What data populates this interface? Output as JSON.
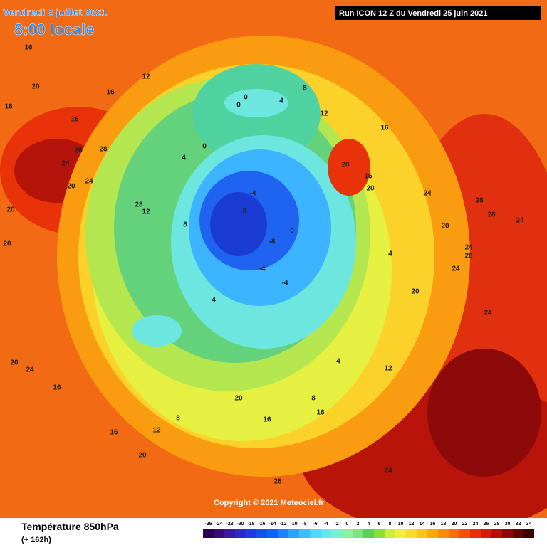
{
  "header": {
    "date": "Vendredi 2 juillet 2021",
    "time": "8:00 locale",
    "run": "Run ICON 12 Z du Vendredi 25 juin 2021"
  },
  "copyright": "Copyright © 2021 Meteociel.fr",
  "footer": {
    "title": "Température 850hPa",
    "lead": "(+ 162h)"
  },
  "colorbar": {
    "ticks": [
      -26,
      -24,
      -22,
      -20,
      -18,
      -16,
      -14,
      -12,
      -10,
      -8,
      -6,
      -4,
      -2,
      0,
      2,
      4,
      6,
      8,
      10,
      12,
      14,
      16,
      18,
      20,
      22,
      24,
      26,
      28,
      30,
      32,
      34
    ],
    "colors": [
      "#2a0050",
      "#3a0a7a",
      "#3c1aa0",
      "#2a2ac8",
      "#1e3ce0",
      "#1450f0",
      "#0a64ff",
      "#1e82ff",
      "#2ea0ff",
      "#3cbeff",
      "#50d6ff",
      "#64e8f0",
      "#78f0d0",
      "#8cf0a0",
      "#7ce67c",
      "#5ad25a",
      "#8cdc3c",
      "#c8f03c",
      "#f0f03c",
      "#fadc28",
      "#fac814",
      "#faaa0a",
      "#fa8c0a",
      "#f56e0a",
      "#f0500a",
      "#e6320a",
      "#d21e0a",
      "#b40f0a",
      "#8c0a0a",
      "#640505",
      "#3c0000"
    ]
  },
  "map_labels": [
    "16",
    "16",
    "12",
    "16",
    "20",
    "16",
    "20",
    "28",
    "24",
    "28",
    "24",
    "20",
    "28",
    "20",
    "12",
    "8",
    "4",
    "0",
    "0",
    "4",
    "-4",
    "-8",
    "-8",
    "-4",
    "-4",
    "0",
    "4",
    "8",
    "0",
    "4",
    "12",
    "16",
    "20",
    "16",
    "20",
    "24",
    "28",
    "24",
    "20",
    "28",
    "24",
    "24",
    "20",
    "16",
    "16",
    "20",
    "12",
    "8",
    "16",
    "28",
    "24",
    "28",
    "24",
    "20",
    "24",
    "16",
    "20",
    "12",
    "4",
    "8"
  ]
}
